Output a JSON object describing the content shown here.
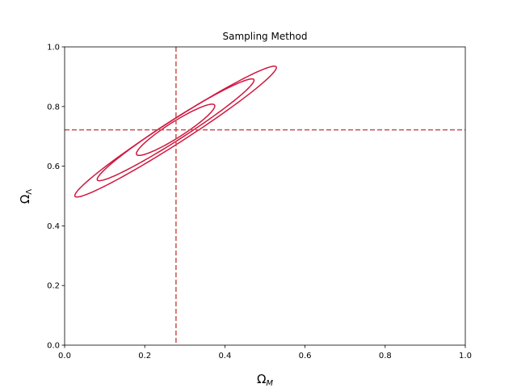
{
  "chart_data": {
    "type": "contour",
    "title": "Sampling Method",
    "xlabel": "Ω",
    "xlabel_sub": "M",
    "ylabel": "Ω",
    "ylabel_sub": "Λ",
    "xlim": [
      0.0,
      1.0
    ],
    "ylim": [
      0.0,
      1.0
    ],
    "xticks": [
      "0.0",
      "0.2",
      "0.4",
      "0.6",
      "0.8",
      "1.0"
    ],
    "yticks": [
      "0.0",
      "0.2",
      "0.4",
      "0.6",
      "0.8",
      "1.0"
    ],
    "grid": false,
    "contour_color": "#d0173f",
    "reference_color": "#c8504f",
    "reference_lines": {
      "x": 0.278,
      "y": 0.722
    },
    "contours": [
      {
        "level": 1,
        "center": [
          0.277,
          0.722
        ],
        "semi_major": 0.128,
        "semi_minor": 0.024,
        "angle_deg": 41
      },
      {
        "level": 2,
        "center": [
          0.277,
          0.722
        ],
        "semi_major": 0.258,
        "semi_minor": 0.03,
        "angle_deg": 41
      },
      {
        "level": 3,
        "center": [
          0.277,
          0.716
        ],
        "semi_major": 0.332,
        "semi_minor": 0.034,
        "angle_deg": 41
      }
    ]
  }
}
